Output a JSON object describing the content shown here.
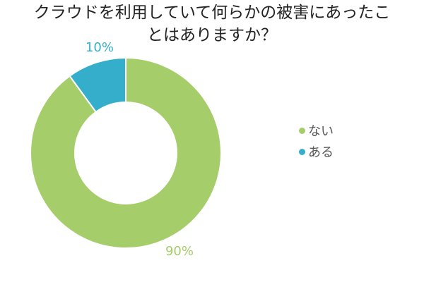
{
  "title": {
    "line1": "クラウドを利用していて何らかの被害にあったこ",
    "line2": "とはありますか？"
  },
  "colors": {
    "nai": "#a5cd69",
    "aru": "#35aecb",
    "stroke": "#ffffff"
  },
  "chart_data": {
    "type": "pie",
    "variant": "donut",
    "title": "クラウドを利用していて何らかの被害にあったことはありますか？",
    "slices": [
      {
        "label": "ない",
        "value": 90,
        "display": "90%",
        "color": "#a5cd69"
      },
      {
        "label": "ある",
        "value": 10,
        "display": "10%",
        "color": "#35aecb"
      }
    ],
    "legend_placement": "right"
  }
}
